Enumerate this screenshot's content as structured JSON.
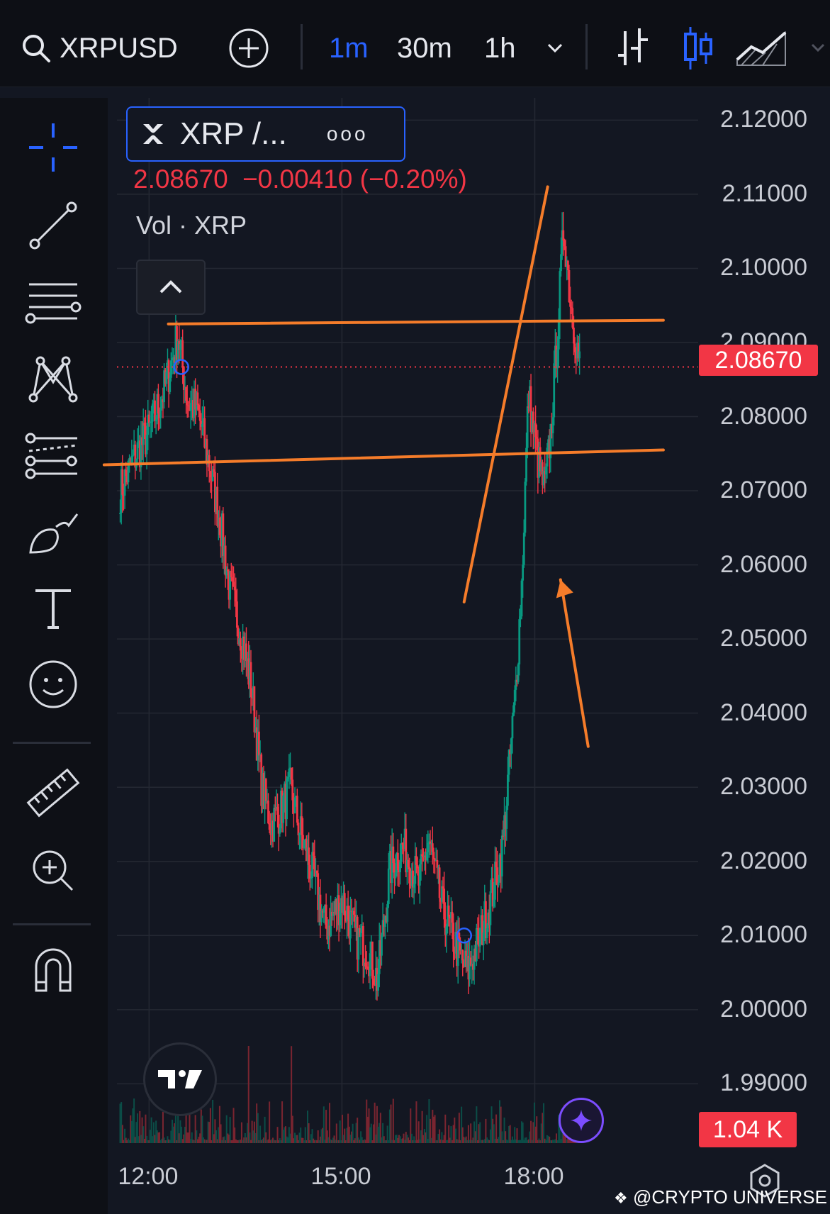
{
  "toolbar": {
    "symbol": "XRPUSD",
    "intervals": [
      "1m",
      "30m",
      "1h"
    ],
    "active_interval": "1m"
  },
  "legend": {
    "title": "XRP /...",
    "more": "ooo",
    "price": "2.08670",
    "change": "−0.00410",
    "change_pct": "(−0.20%)",
    "vol_label": "Vol · XRP"
  },
  "colors": {
    "background": "#131722",
    "accent": "#2962ff",
    "down": "#f23645",
    "up": "#089981",
    "annotation": "#f57c2a"
  },
  "chart_data": {
    "type": "candlestick",
    "symbol": "XRPUSD",
    "interval": "1m",
    "y_axis_ticks": [
      "2.12000",
      "2.11000",
      "2.10000",
      "2.09000",
      "2.08000",
      "2.07000",
      "2.06000",
      "2.05000",
      "2.04000",
      "2.03000",
      "2.02000",
      "2.01000",
      "2.00000",
      "1.99000"
    ],
    "ylim": [
      1.982,
      2.123
    ],
    "x_axis_ticks": [
      "12:00",
      "15:00",
      "18:00"
    ],
    "x_hours": [
      11.5,
      18.7
    ],
    "current_price": "2.08670",
    "volume_label": "1.04 K",
    "price_path": [
      [
        11.55,
        2.07
      ],
      [
        11.8,
        2.075
      ],
      [
        12.0,
        2.078
      ],
      [
        12.25,
        2.084
      ],
      [
        12.45,
        2.091
      ],
      [
        12.6,
        2.082
      ],
      [
        12.75,
        2.081
      ],
      [
        12.95,
        2.073
      ],
      [
        13.1,
        2.066
      ],
      [
        13.25,
        2.057
      ],
      [
        13.45,
        2.05
      ],
      [
        13.6,
        2.043
      ],
      [
        13.75,
        2.03
      ],
      [
        13.9,
        2.025
      ],
      [
        14.05,
        2.027
      ],
      [
        14.2,
        2.03
      ],
      [
        14.35,
        2.024
      ],
      [
        14.55,
        2.018
      ],
      [
        14.75,
        2.011
      ],
      [
        15.0,
        2.015
      ],
      [
        15.2,
        2.01
      ],
      [
        15.4,
        2.008
      ],
      [
        15.55,
        2.004
      ],
      [
        15.75,
        2.019
      ],
      [
        15.95,
        2.022
      ],
      [
        16.2,
        2.017
      ],
      [
        16.35,
        2.023
      ],
      [
        16.55,
        2.014
      ],
      [
        16.8,
        2.008
      ],
      [
        16.95,
        2.005
      ],
      [
        17.15,
        2.01
      ],
      [
        17.35,
        2.016
      ],
      [
        17.5,
        2.022
      ],
      [
        17.7,
        2.043
      ],
      [
        17.8,
        2.058
      ],
      [
        17.9,
        2.083
      ],
      [
        18.05,
        2.074
      ],
      [
        18.15,
        2.07
      ],
      [
        18.25,
        2.078
      ],
      [
        18.35,
        2.091
      ],
      [
        18.45,
        2.106
      ],
      [
        18.55,
        2.096
      ],
      [
        18.7,
        2.0867
      ]
    ],
    "markers": [
      [
        12.5,
        2.0867
      ],
      [
        16.9,
        2.01
      ]
    ],
    "annotations": {
      "lines": [
        [
          [
            12.3,
            2.0925
          ],
          [
            20.0,
            2.093
          ]
        ],
        [
          [
            11.3,
            2.0735
          ],
          [
            20.0,
            2.0755
          ]
        ],
        [
          [
            16.9,
            2.055
          ],
          [
            18.2,
            2.111
          ]
        ],
        [
          [
            18.83,
            2.0355
          ],
          [
            18.4,
            2.058
          ]
        ]
      ],
      "arrow_tip": [
        18.4,
        2.058
      ]
    }
  },
  "watermark": "@CRYPTO UNIVERSE -"
}
